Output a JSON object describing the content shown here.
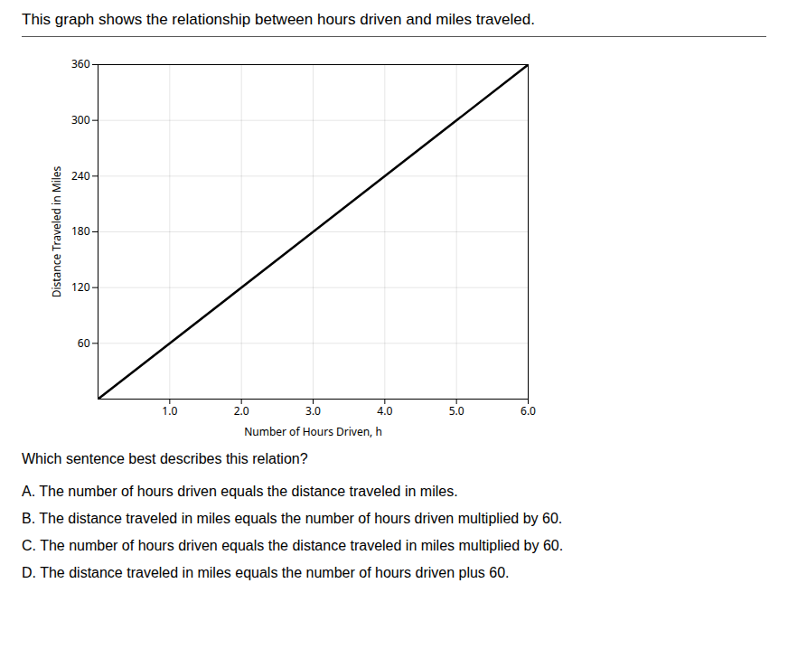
{
  "chart_data": {
    "type": "line",
    "title": "This graph shows the relationship between hours driven and miles traveled.",
    "xlabel": "Number of Hours Driven, h",
    "ylabel": "Distance Traveled in Miles",
    "x": [
      0,
      6
    ],
    "values": [
      0,
      360
    ],
    "color": "#000000",
    "xlim": [
      0,
      6
    ],
    "ylim": [
      0,
      360
    ],
    "xticks": [
      1,
      2,
      3,
      4,
      5,
      6
    ],
    "yticks": [
      60,
      120,
      180,
      240,
      300,
      360
    ],
    "grid": true,
    "annotations": [
      "Which sentence best describes this relation?",
      "A. The number of hours driven equals the distance traveled in miles.",
      "B. The distance traveled in miles equals the number of hours driven multiplied by 60.",
      "C. The number of hours driven equals the distance traveled in miles multiplied by 60.",
      "D. The distance traveled in miles equals the number of hours driven plus 60."
    ]
  }
}
